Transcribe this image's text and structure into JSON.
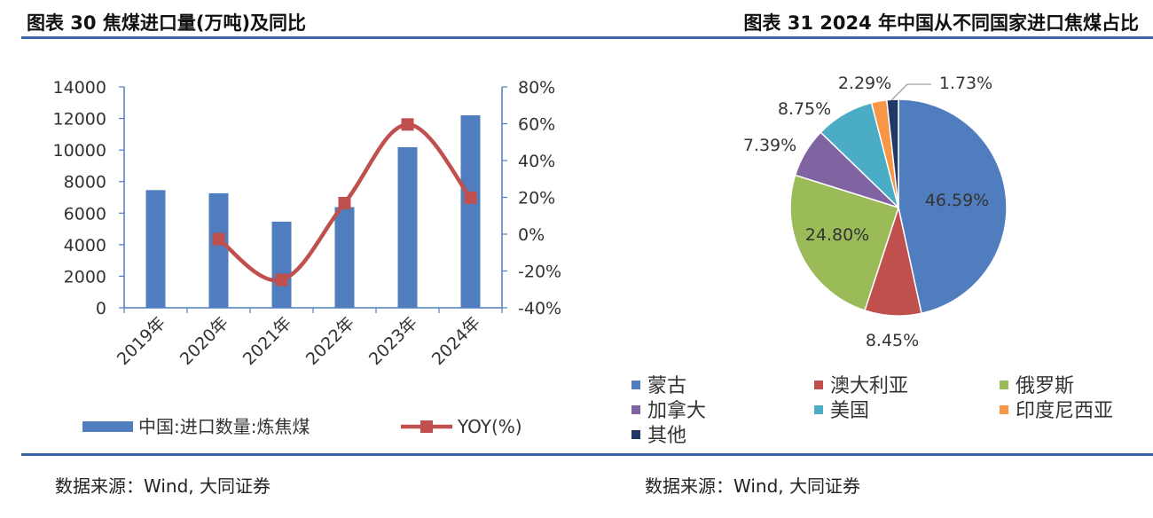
{
  "left_panel": {
    "title": "图表 30  焦煤进口量(万吨)及同比",
    "source": "数据来源：Wind, 大同证券"
  },
  "right_panel": {
    "title": "图表 31  2024 年中国从不同国家进口焦煤占比",
    "source": "数据来源：Wind, 大同证券"
  },
  "chart_data": [
    {
      "type": "bar",
      "categories": [
        "2019年",
        "2020年",
        "2021年",
        "2022年",
        "2023年",
        "2024年"
      ],
      "series": [
        {
          "name": "中国:进口数量:炼焦煤",
          "type": "bar",
          "axis": "left",
          "color": "#4f7dbd",
          "values": [
            7460,
            7260,
            5460,
            6380,
            10180,
            12200
          ]
        },
        {
          "name": "YOY(%)",
          "type": "line",
          "axis": "right",
          "color": "#c0504d",
          "values": [
            null,
            -2.7,
            -24.8,
            16.9,
            59.6,
            19.8
          ]
        }
      ],
      "y_left": {
        "min": 0,
        "max": 14000,
        "ticks": [
          "0",
          "2000",
          "4000",
          "6000",
          "8000",
          "10000",
          "12000",
          "14000"
        ]
      },
      "y_right": {
        "min": -40,
        "max": 80,
        "ticks": [
          "-40%",
          "-20%",
          "0%",
          "20%",
          "40%",
          "60%",
          "80%"
        ]
      },
      "legend_position": "bottom"
    },
    {
      "type": "pie",
      "slices": [
        {
          "name": "蒙古",
          "value": 46.59,
          "label": "46.59%",
          "color": "#4f7dbd"
        },
        {
          "name": "澳大利亚",
          "value": 8.45,
          "label": "8.45%",
          "color": "#c0504d"
        },
        {
          "name": "俄罗斯",
          "value": 24.8,
          "label": "24.80%",
          "color": "#9bbb59"
        },
        {
          "name": "加拿大",
          "value": 7.39,
          "label": "7.39%",
          "color": "#8064a2"
        },
        {
          "name": "美国",
          "value": 8.75,
          "label": "8.75%",
          "color": "#4bacc6"
        },
        {
          "name": "印度尼西亚",
          "value": 2.29,
          "label": "2.29%",
          "color": "#f79646"
        },
        {
          "name": "其他",
          "value": 1.73,
          "label": "1.73%",
          "color": "#1f3864"
        }
      ],
      "legend_position": "bottom"
    }
  ]
}
